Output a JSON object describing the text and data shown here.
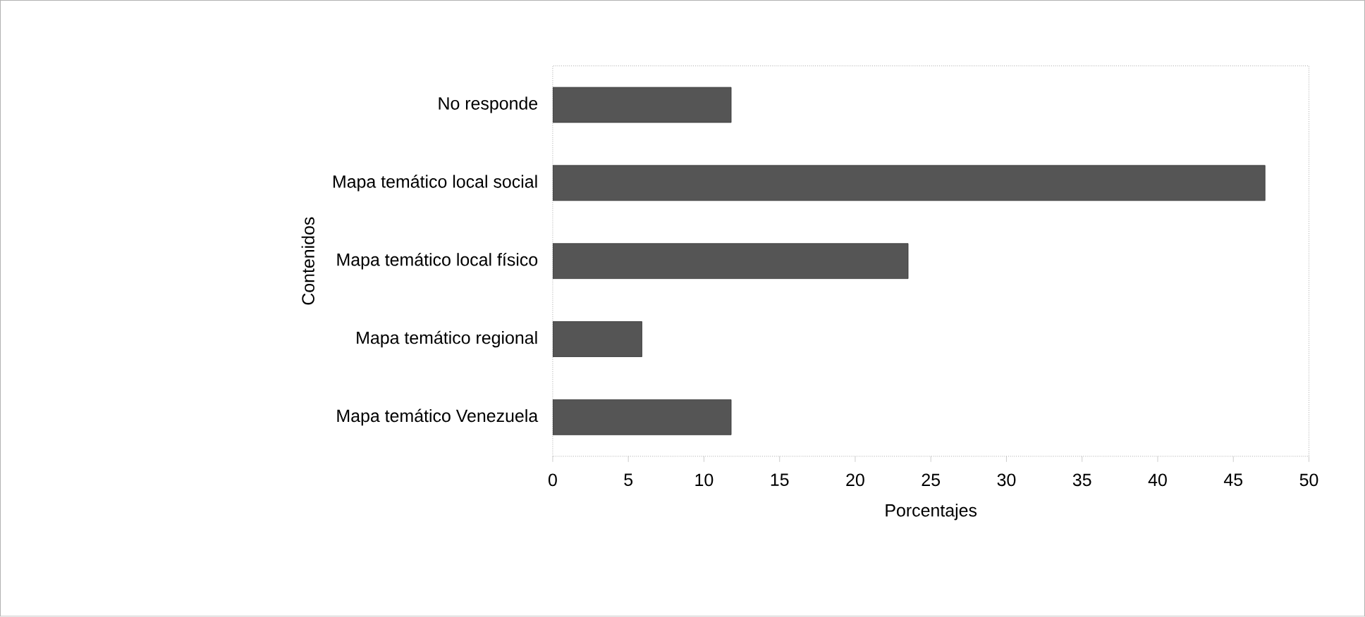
{
  "chart_data": {
    "type": "bar",
    "orientation": "horizontal",
    "categories": [
      "No responde",
      "Mapa temático local social",
      "Mapa temático local físico",
      "Mapa temático regional",
      "Mapa temático Venezuela"
    ],
    "values": [
      11.8,
      47.1,
      23.5,
      5.9,
      11.8
    ],
    "color": "#555555",
    "xlim": [
      0,
      50
    ],
    "xticks": [
      0,
      5,
      10,
      15,
      20,
      25,
      30,
      35,
      40,
      45,
      50
    ],
    "xlabel": "Porcentajes",
    "ylabel": "Contenidos"
  }
}
